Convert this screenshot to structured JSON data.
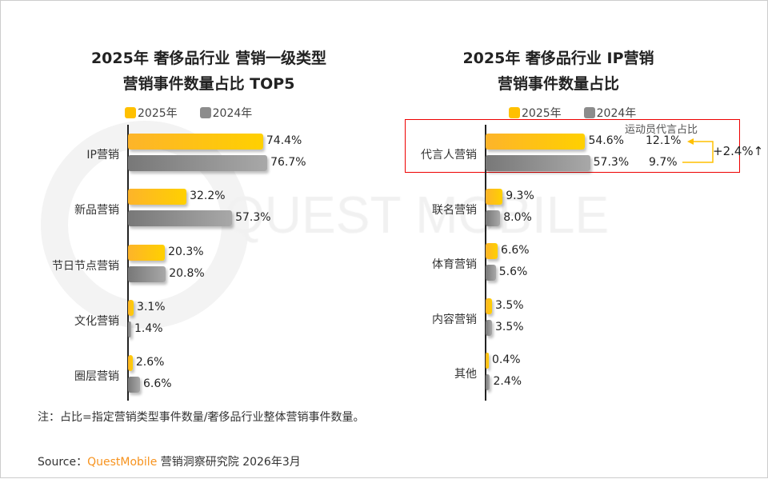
{
  "watermark": "QUEST MOBILE",
  "colors": {
    "y2025": "#ffc000",
    "y2024": "#8c8c8c",
    "highlight": "#e00000",
    "brand": "#f7931e"
  },
  "chart_data": [
    {
      "type": "bar",
      "orientation": "horizontal",
      "title": "2025年 奢侈品行业 营销一级类型",
      "subtitle": "营销事件数量占比 TOP5",
      "categories": [
        "IP营销",
        "新品营销",
        "节日节点营销",
        "文化营销",
        "圈层营销"
      ],
      "series": [
        {
          "name": "2025年",
          "values": [
            74.4,
            32.2,
            20.3,
            3.1,
            2.6
          ]
        },
        {
          "name": "2024年",
          "values": [
            76.7,
            57.3,
            20.8,
            1.4,
            6.6
          ]
        }
      ],
      "labels": [
        [
          "74.4%",
          "32.2%",
          "20.3%",
          "3.1%",
          "2.6%"
        ],
        [
          "76.7%",
          "57.3%",
          "20.8%",
          "1.4%",
          "6.6%"
        ]
      ],
      "legend": "top"
    },
    {
      "type": "bar",
      "orientation": "horizontal",
      "title": "2025年 奢侈品行业 IP营销",
      "subtitle": "营销事件数量占比",
      "categories": [
        "代言人营销",
        "联名营销",
        "体育营销",
        "内容营销",
        "其他"
      ],
      "series": [
        {
          "name": "2025年",
          "values": [
            54.6,
            9.3,
            6.6,
            3.5,
            0.4
          ]
        },
        {
          "name": "2024年",
          "values": [
            57.3,
            8.0,
            5.6,
            3.5,
            2.4
          ]
        }
      ],
      "labels": [
        [
          "54.6%",
          "9.3%",
          "6.6%",
          "3.5%",
          "0.4%"
        ],
        [
          "57.3%",
          "8.0%",
          "5.6%",
          "3.5%",
          "2.4%"
        ]
      ],
      "legend": "top",
      "annotation": {
        "header": "运动员代言占比",
        "v2025": "12.1%",
        "v2024": "9.7%",
        "change": "+2.4%↑"
      }
    }
  ],
  "note": "注：占比=指定营销类型事件数量/奢侈品行业整体营销事件数量。",
  "source": {
    "prefix": "Source：",
    "brand": "QuestMobile",
    "suffix": " 营销洞察研究院 2026年3月"
  }
}
